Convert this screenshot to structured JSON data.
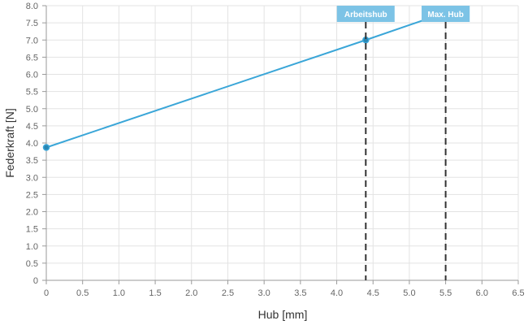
{
  "chart_data": {
    "type": "line",
    "xlabel": "Hub [mm]",
    "ylabel": "Federkraft [N]",
    "xlim": [
      0,
      6.5
    ],
    "ylim": [
      0,
      8.0
    ],
    "x_ticks": [
      "0",
      "0.5",
      "1.0",
      "1.5",
      "2.0",
      "2.5",
      "3.0",
      "3.5",
      "4.0",
      "4.5",
      "5.0",
      "5.5",
      "6.0",
      "6.5"
    ],
    "y_ticks": [
      "0",
      "0.5",
      "1.0",
      "1.5",
      "2.0",
      "2.5",
      "3.0",
      "3.5",
      "4.0",
      "4.5",
      "5.0",
      "5.5",
      "6.0",
      "6.5",
      "7.0",
      "7.5",
      "8.0"
    ],
    "grid": true,
    "series": [
      {
        "x": [
          0,
          4.4,
          5.5
        ],
        "y": [
          3.87,
          7.0,
          7.8
        ]
      }
    ],
    "markers": [
      {
        "label": "Arbeitshub",
        "x": 4.4
      },
      {
        "label": "Max. Hub",
        "x": 5.5
      }
    ],
    "colors": {
      "line": "#3aa6d8",
      "point": "#2a86b2",
      "marker_label_bg": "#7cc3e6",
      "marker_line": "#333333",
      "grid": "#e3e3e3",
      "axis": "#9a9a9a"
    }
  }
}
